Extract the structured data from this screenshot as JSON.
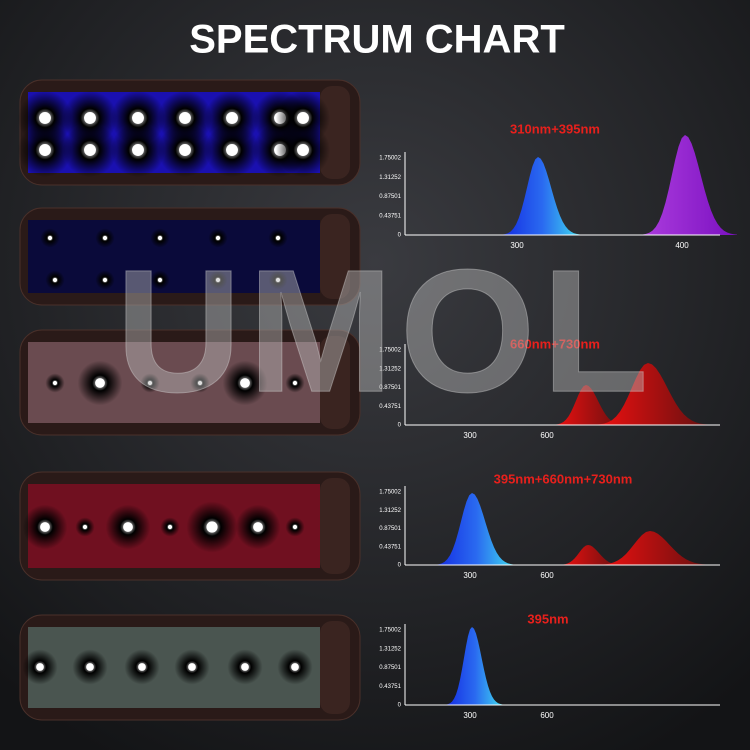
{
  "title": "SPECTRUM CHART",
  "watermark": "UMOL",
  "panels": [
    {
      "label": "310nm+395nm",
      "yticks": [
        "1.75002",
        "1.31252",
        "0.87501",
        "0.43751",
        "0"
      ],
      "xticks": [
        "300",
        "400"
      ]
    },
    {
      "label": "660nm+730nm",
      "yticks": [
        "1.75002",
        "1.31252",
        "0.87501",
        "0.43751",
        "0"
      ],
      "xticks": [
        "300",
        "600"
      ]
    },
    {
      "label": "395nm+660nm+730nm",
      "yticks": [
        "1.75002",
        "1.31252",
        "0.87501",
        "0.43751",
        "0"
      ],
      "xticks": [
        "300",
        "600"
      ]
    },
    {
      "label": "395nm",
      "yticks": [
        "1.75002",
        "1.31252",
        "0.87501",
        "0.43751",
        "0"
      ],
      "xticks": [
        "300",
        "600"
      ]
    }
  ]
}
